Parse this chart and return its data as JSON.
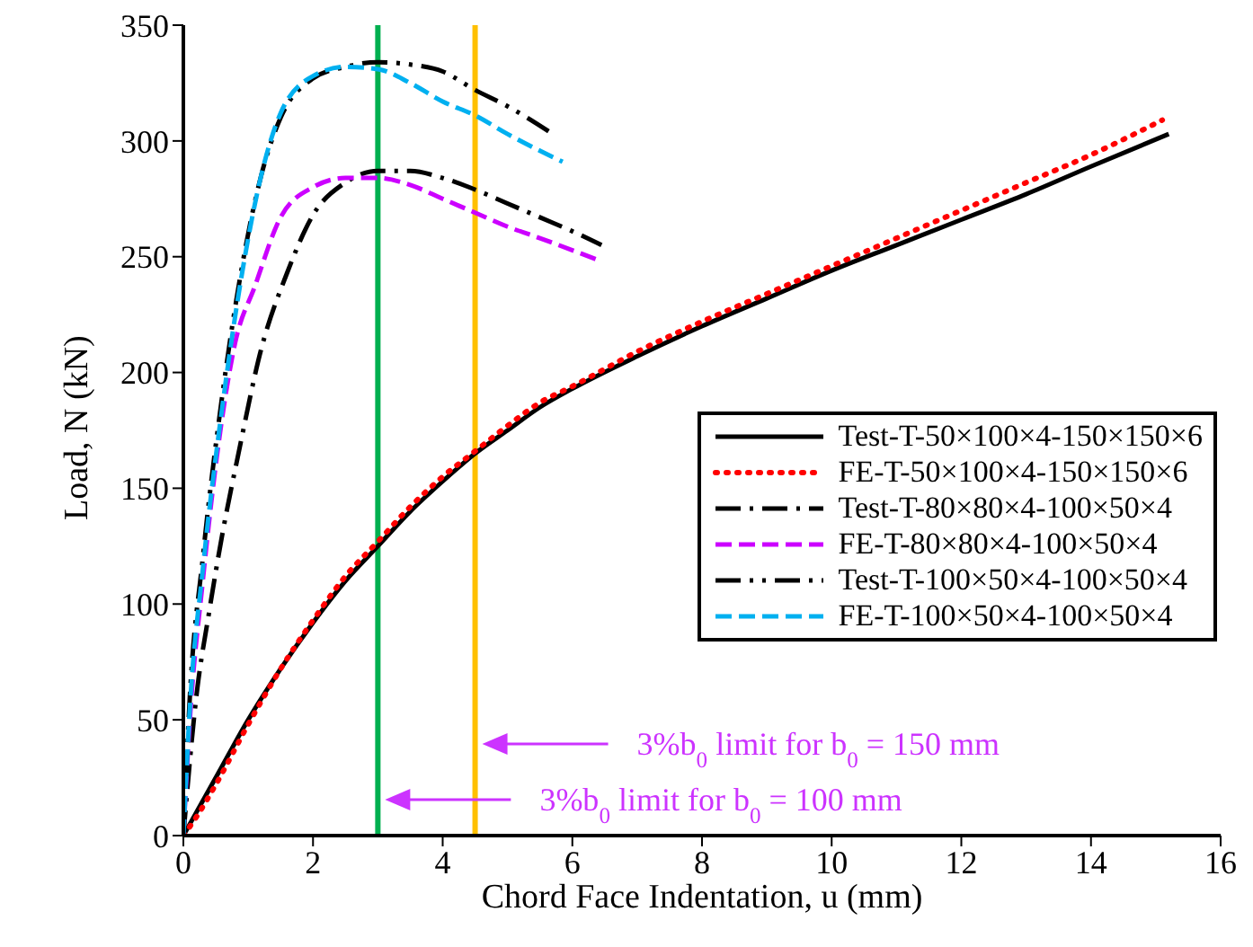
{
  "chart_data": {
    "type": "line",
    "xlabel": "Chord Face Indentation, u (mm)",
    "ylabel": "Load, N (kN)",
    "xlim": [
      0,
      16
    ],
    "xticks": [
      0,
      2,
      4,
      6,
      8,
      10,
      12,
      14,
      16
    ],
    "ylim": [
      0,
      350
    ],
    "yticks": [
      0,
      50,
      100,
      150,
      200,
      250,
      300,
      350
    ],
    "grid": false,
    "legend": "right",
    "marker": "none",
    "series": [
      {
        "name": "Test-T-50×100×4-150×150×6",
        "color": "#000000",
        "line_style": "solid",
        "x": [
          0,
          0.5,
          1,
          1.5,
          2,
          2.5,
          3,
          3.5,
          4,
          4.5,
          5,
          5.5,
          6,
          7,
          8,
          9,
          10,
          11,
          12,
          13,
          14,
          15.2
        ],
        "values": [
          0,
          25,
          50,
          72,
          92,
          110,
          125,
          140,
          153,
          165,
          175,
          185,
          193,
          207,
          220,
          232,
          244,
          255,
          266,
          277,
          289,
          303
        ]
      },
      {
        "name": "FE-T-50×100×4-150×150×6",
        "color": "#ff0000",
        "line_style": "dotted",
        "x": [
          0,
          0.2,
          0.5,
          1,
          1.5,
          2,
          2.5,
          3,
          3.5,
          4,
          4.5,
          5,
          5.5,
          6,
          7,
          8,
          9,
          10,
          11,
          12,
          13,
          14,
          15.1
        ],
        "values": [
          0,
          8,
          22,
          48,
          72,
          93,
          112,
          127,
          142,
          155,
          166,
          177,
          187,
          194,
          209,
          222,
          234,
          246,
          258,
          270,
          282,
          294,
          309
        ]
      },
      {
        "name": "Test-T-80×80×4-100×50×4",
        "color": "#000000",
        "line_style": "dashdot",
        "x": [
          0,
          0.2,
          0.4,
          0.6,
          0.85,
          1.2,
          1.6,
          2,
          2.5,
          3,
          3.5,
          4,
          4.5,
          5,
          5.5,
          6,
          6.45
        ],
        "values": [
          0,
          60,
          97,
          130,
          165,
          210,
          243,
          268,
          282,
          287,
          287,
          284,
          279,
          273,
          267,
          261,
          255
        ]
      },
      {
        "name": "FE-T-80×80×4-100×50×4",
        "color": "#cc00ff",
        "line_style": "dashed",
        "x": [
          0,
          0.1,
          0.3,
          0.5,
          0.8,
          1.1,
          1.5,
          2,
          2.5,
          3,
          3.5,
          4,
          4.5,
          5,
          5.5,
          6.45
        ],
        "values": [
          0,
          50,
          110,
          160,
          213,
          237,
          267,
          280,
          284,
          284,
          281,
          275,
          269,
          263,
          258,
          248
        ]
      },
      {
        "name": "Test-T-100×50×4-100×50×4",
        "color": "#000000",
        "line_style": "dashdotdot",
        "x": [
          0,
          0.1,
          0.3,
          0.6,
          0.9,
          1.2,
          1.5,
          2,
          2.5,
          3,
          3.5,
          4,
          4.5,
          5,
          5.7
        ],
        "values": [
          0,
          60,
          120,
          190,
          245,
          285,
          310,
          327,
          332,
          334,
          333,
          330,
          322,
          315,
          303
        ]
      },
      {
        "name": "FE-T-100×50×4-100×50×4",
        "color": "#00b0f0",
        "line_style": "dashed",
        "x": [
          0,
          0.1,
          0.3,
          0.6,
          0.9,
          1.2,
          1.5,
          2,
          2.5,
          3,
          3.5,
          4,
          4.5,
          5,
          5.85
        ],
        "values": [
          0,
          55,
          115,
          185,
          242,
          285,
          312,
          328,
          332,
          331,
          325,
          317,
          311,
          303,
          291
        ]
      }
    ],
    "ref_lines": [
      {
        "axis": "x",
        "value": 3,
        "color": "#00b050",
        "line_style": "solid"
      },
      {
        "axis": "x",
        "value": 4.5,
        "color": "#ffc000",
        "line_style": "solid"
      }
    ],
    "annotations": [
      "3%b$_{0}$ limit  for b$_{0}$ = 100 mm",
      "3%b$_{0}$ limit  for b$_{0}$ = 150 mm"
    ]
  }
}
